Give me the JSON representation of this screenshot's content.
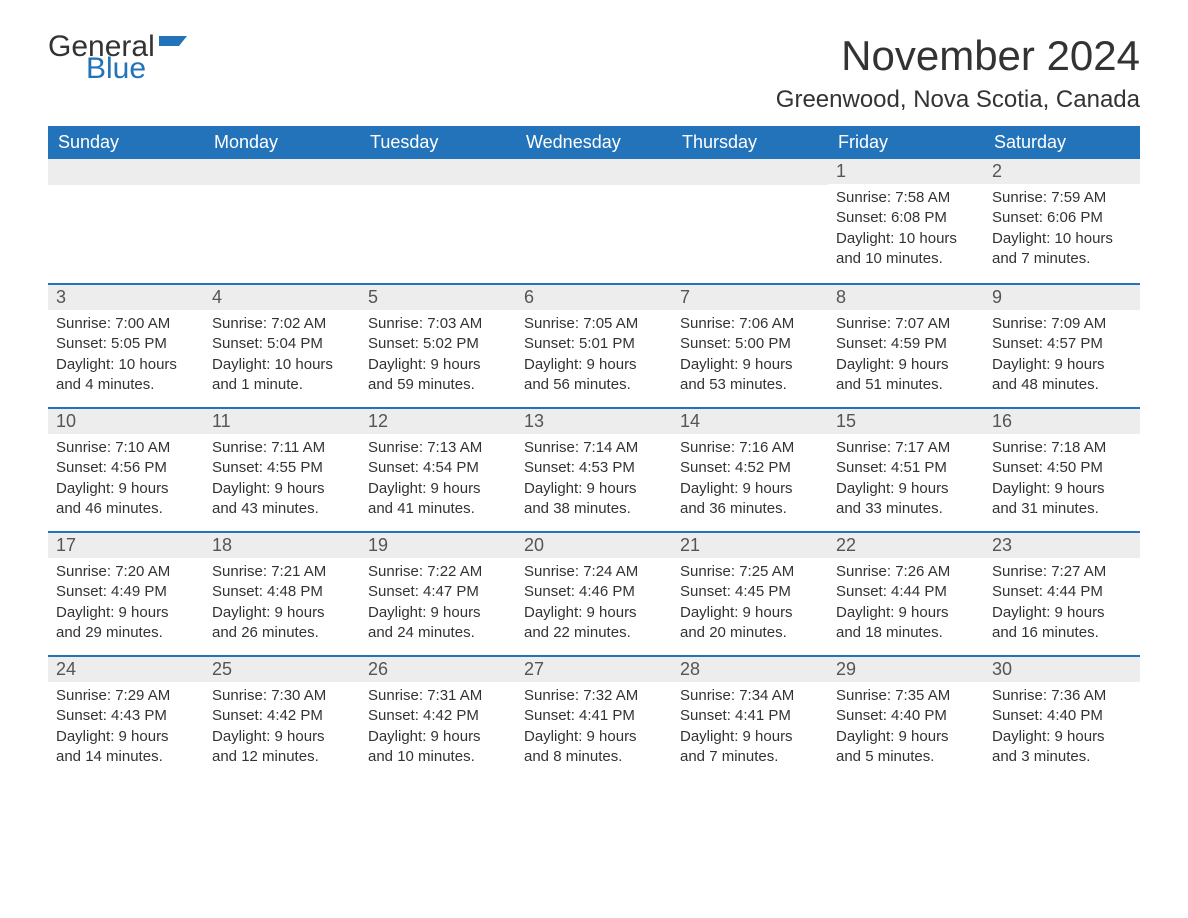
{
  "logo": {
    "word1": "General",
    "word2": "Blue",
    "flag_color": "#2273b9"
  },
  "title": "November 2024",
  "location": "Greenwood, Nova Scotia, Canada",
  "colors": {
    "header_bg": "#2273b9",
    "header_text": "#ffffff",
    "daynum_bg": "#ededed",
    "body_text": "#333333",
    "page_bg": "#ffffff"
  },
  "weekdays": [
    "Sunday",
    "Monday",
    "Tuesday",
    "Wednesday",
    "Thursday",
    "Friday",
    "Saturday"
  ],
  "weeks": [
    [
      null,
      null,
      null,
      null,
      null,
      {
        "n": "1",
        "sunrise": "Sunrise: 7:58 AM",
        "sunset": "Sunset: 6:08 PM",
        "daylight": "Daylight: 10 hours and 10 minutes."
      },
      {
        "n": "2",
        "sunrise": "Sunrise: 7:59 AM",
        "sunset": "Sunset: 6:06 PM",
        "daylight": "Daylight: 10 hours and 7 minutes."
      }
    ],
    [
      {
        "n": "3",
        "sunrise": "Sunrise: 7:00 AM",
        "sunset": "Sunset: 5:05 PM",
        "daylight": "Daylight: 10 hours and 4 minutes."
      },
      {
        "n": "4",
        "sunrise": "Sunrise: 7:02 AM",
        "sunset": "Sunset: 5:04 PM",
        "daylight": "Daylight: 10 hours and 1 minute."
      },
      {
        "n": "5",
        "sunrise": "Sunrise: 7:03 AM",
        "sunset": "Sunset: 5:02 PM",
        "daylight": "Daylight: 9 hours and 59 minutes."
      },
      {
        "n": "6",
        "sunrise": "Sunrise: 7:05 AM",
        "sunset": "Sunset: 5:01 PM",
        "daylight": "Daylight: 9 hours and 56 minutes."
      },
      {
        "n": "7",
        "sunrise": "Sunrise: 7:06 AM",
        "sunset": "Sunset: 5:00 PM",
        "daylight": "Daylight: 9 hours and 53 minutes."
      },
      {
        "n": "8",
        "sunrise": "Sunrise: 7:07 AM",
        "sunset": "Sunset: 4:59 PM",
        "daylight": "Daylight: 9 hours and 51 minutes."
      },
      {
        "n": "9",
        "sunrise": "Sunrise: 7:09 AM",
        "sunset": "Sunset: 4:57 PM",
        "daylight": "Daylight: 9 hours and 48 minutes."
      }
    ],
    [
      {
        "n": "10",
        "sunrise": "Sunrise: 7:10 AM",
        "sunset": "Sunset: 4:56 PM",
        "daylight": "Daylight: 9 hours and 46 minutes."
      },
      {
        "n": "11",
        "sunrise": "Sunrise: 7:11 AM",
        "sunset": "Sunset: 4:55 PM",
        "daylight": "Daylight: 9 hours and 43 minutes."
      },
      {
        "n": "12",
        "sunrise": "Sunrise: 7:13 AM",
        "sunset": "Sunset: 4:54 PM",
        "daylight": "Daylight: 9 hours and 41 minutes."
      },
      {
        "n": "13",
        "sunrise": "Sunrise: 7:14 AM",
        "sunset": "Sunset: 4:53 PM",
        "daylight": "Daylight: 9 hours and 38 minutes."
      },
      {
        "n": "14",
        "sunrise": "Sunrise: 7:16 AM",
        "sunset": "Sunset: 4:52 PM",
        "daylight": "Daylight: 9 hours and 36 minutes."
      },
      {
        "n": "15",
        "sunrise": "Sunrise: 7:17 AM",
        "sunset": "Sunset: 4:51 PM",
        "daylight": "Daylight: 9 hours and 33 minutes."
      },
      {
        "n": "16",
        "sunrise": "Sunrise: 7:18 AM",
        "sunset": "Sunset: 4:50 PM",
        "daylight": "Daylight: 9 hours and 31 minutes."
      }
    ],
    [
      {
        "n": "17",
        "sunrise": "Sunrise: 7:20 AM",
        "sunset": "Sunset: 4:49 PM",
        "daylight": "Daylight: 9 hours and 29 minutes."
      },
      {
        "n": "18",
        "sunrise": "Sunrise: 7:21 AM",
        "sunset": "Sunset: 4:48 PM",
        "daylight": "Daylight: 9 hours and 26 minutes."
      },
      {
        "n": "19",
        "sunrise": "Sunrise: 7:22 AM",
        "sunset": "Sunset: 4:47 PM",
        "daylight": "Daylight: 9 hours and 24 minutes."
      },
      {
        "n": "20",
        "sunrise": "Sunrise: 7:24 AM",
        "sunset": "Sunset: 4:46 PM",
        "daylight": "Daylight: 9 hours and 22 minutes."
      },
      {
        "n": "21",
        "sunrise": "Sunrise: 7:25 AM",
        "sunset": "Sunset: 4:45 PM",
        "daylight": "Daylight: 9 hours and 20 minutes."
      },
      {
        "n": "22",
        "sunrise": "Sunrise: 7:26 AM",
        "sunset": "Sunset: 4:44 PM",
        "daylight": "Daylight: 9 hours and 18 minutes."
      },
      {
        "n": "23",
        "sunrise": "Sunrise: 7:27 AM",
        "sunset": "Sunset: 4:44 PM",
        "daylight": "Daylight: 9 hours and 16 minutes."
      }
    ],
    [
      {
        "n": "24",
        "sunrise": "Sunrise: 7:29 AM",
        "sunset": "Sunset: 4:43 PM",
        "daylight": "Daylight: 9 hours and 14 minutes."
      },
      {
        "n": "25",
        "sunrise": "Sunrise: 7:30 AM",
        "sunset": "Sunset: 4:42 PM",
        "daylight": "Daylight: 9 hours and 12 minutes."
      },
      {
        "n": "26",
        "sunrise": "Sunrise: 7:31 AM",
        "sunset": "Sunset: 4:42 PM",
        "daylight": "Daylight: 9 hours and 10 minutes."
      },
      {
        "n": "27",
        "sunrise": "Sunrise: 7:32 AM",
        "sunset": "Sunset: 4:41 PM",
        "daylight": "Daylight: 9 hours and 8 minutes."
      },
      {
        "n": "28",
        "sunrise": "Sunrise: 7:34 AM",
        "sunset": "Sunset: 4:41 PM",
        "daylight": "Daylight: 9 hours and 7 minutes."
      },
      {
        "n": "29",
        "sunrise": "Sunrise: 7:35 AM",
        "sunset": "Sunset: 4:40 PM",
        "daylight": "Daylight: 9 hours and 5 minutes."
      },
      {
        "n": "30",
        "sunrise": "Sunrise: 7:36 AM",
        "sunset": "Sunset: 4:40 PM",
        "daylight": "Daylight: 9 hours and 3 minutes."
      }
    ]
  ]
}
